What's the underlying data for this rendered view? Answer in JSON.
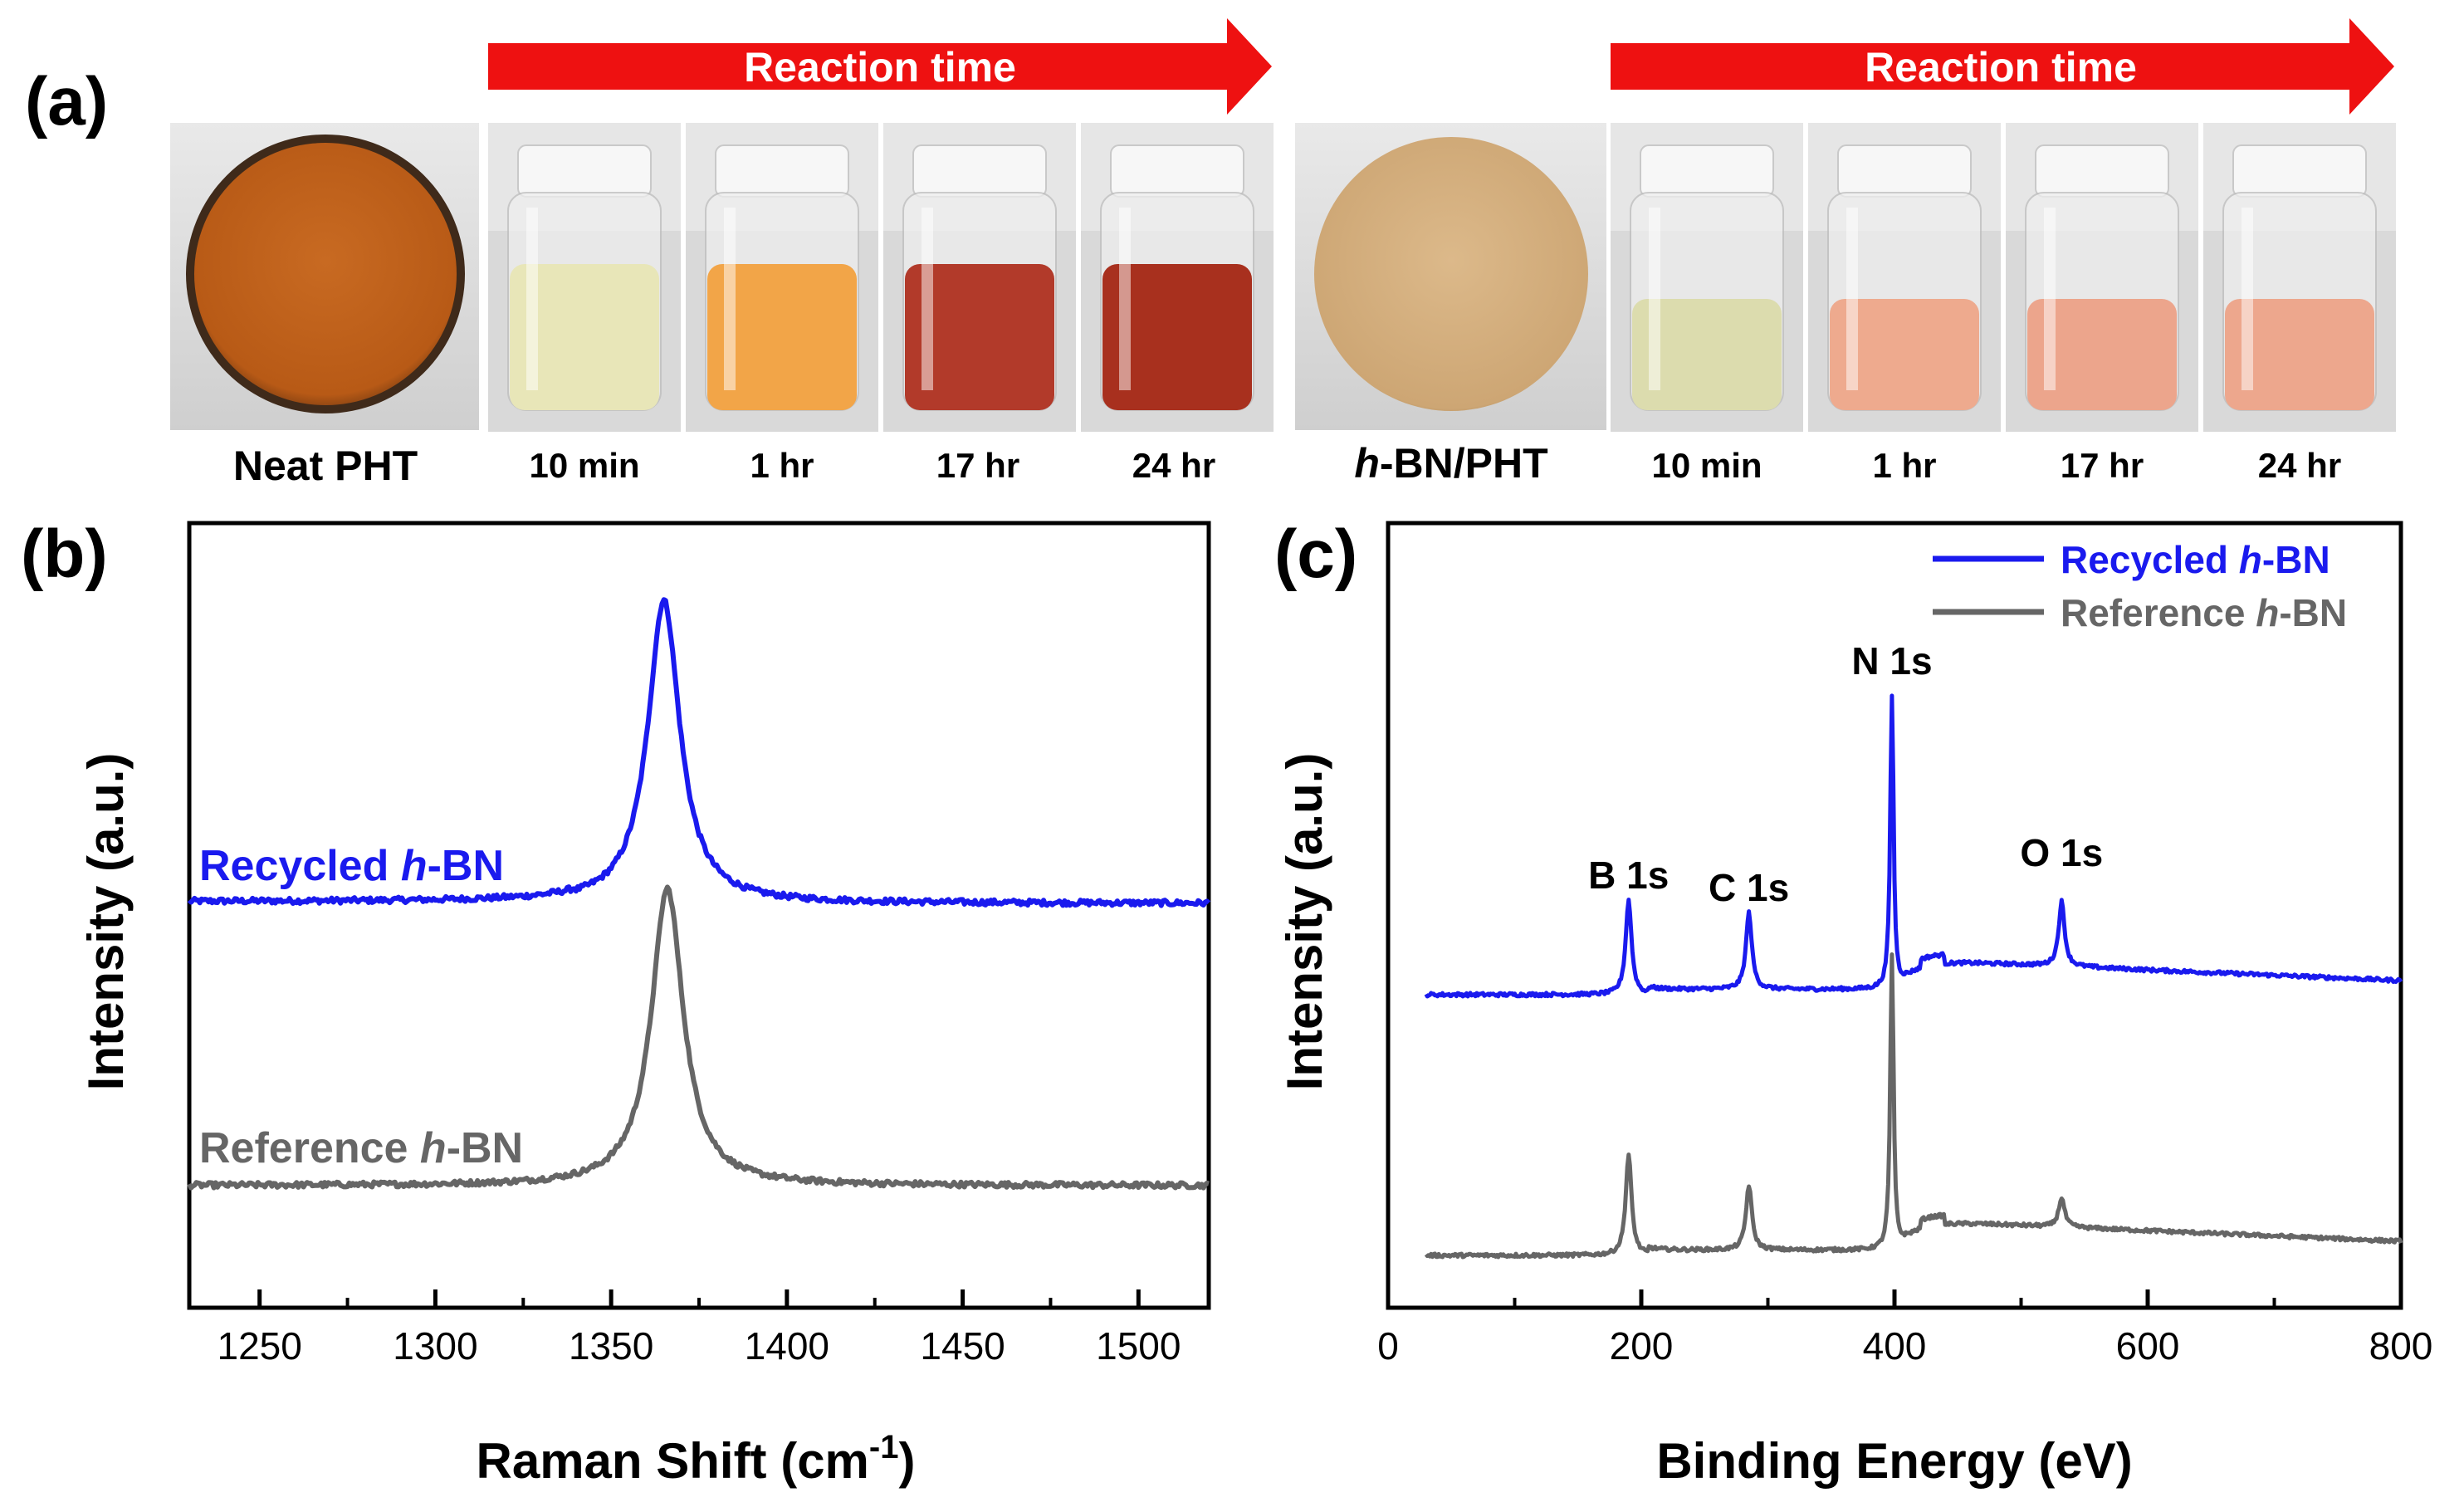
{
  "colors": {
    "blue": "#1a1aee",
    "gray": "#666666",
    "arrow": "#ee1111"
  },
  "panel_a": {
    "label": "(a)",
    "arrow_text_left": "Reaction time",
    "arrow_text_right": "Reaction time",
    "film1": "Neat PHT",
    "film2_italic": "h",
    "film2_rest": "-BN/PHT",
    "times": [
      "10 min",
      "1 hr",
      "17 hr",
      "24 hr"
    ],
    "left_vial_colors": [
      "#e8e6b8",
      "#f2a548",
      "#b23a2a",
      "#a8301e"
    ],
    "right_vial_colors": [
      "#dcdcae",
      "#eeaa8e",
      "#eca58c",
      "#eda78d"
    ]
  },
  "chart_data": [
    {
      "panel": "(b)",
      "type": "line",
      "xlabel": "Raman Shift (cm",
      "xlabel_sup": "-1",
      "xlabel_end": ")",
      "ylabel": "Intensity (a.u.)",
      "xlim": [
        1230,
        1520
      ],
      "xticks": [
        1250,
        1300,
        1350,
        1400,
        1450,
        1500
      ],
      "series": [
        {
          "name_pre": "Recycled ",
          "name_it": "h",
          "name_post": "-BN",
          "color": "#1a1aee",
          "peak_x": 1365,
          "peak_height": 1.0,
          "baseline": 0.0,
          "width": 5.5
        },
        {
          "name_pre": "Reference ",
          "name_it": "h",
          "name_post": "-BN",
          "color": "#666666",
          "peak_x": 1366,
          "peak_height": 1.0,
          "baseline": 0.0,
          "width": 5.5
        }
      ]
    },
    {
      "panel": "(c)",
      "type": "line",
      "xlabel": "Binding Energy (eV)",
      "ylabel": "Intensity (a.u.)",
      "xlim": [
        0,
        800
      ],
      "xticks": [
        0,
        200,
        400,
        600,
        800
      ],
      "annotations": [
        {
          "text": "B 1s",
          "x": 190
        },
        {
          "text": "C 1s",
          "x": 285
        },
        {
          "text": "N 1s",
          "x": 398
        },
        {
          "text": "O 1s",
          "x": 532
        }
      ],
      "series": [
        {
          "name_pre": "Recycled ",
          "name_it": "h",
          "name_post": "-BN",
          "color": "#1a1aee",
          "peaks": [
            {
              "x": 190,
              "h": 0.32
            },
            {
              "x": 285,
              "h": 0.26
            },
            {
              "x": 398,
              "h": 1.0
            },
            {
              "x": 532,
              "h": 0.22
            }
          ]
        },
        {
          "name_pre": "Reference ",
          "name_it": "h",
          "name_post": "-BN",
          "color": "#666666",
          "peaks": [
            {
              "x": 190,
              "h": 0.34
            },
            {
              "x": 285,
              "h": 0.22
            },
            {
              "x": 398,
              "h": 1.0
            },
            {
              "x": 532,
              "h": 0.1
            }
          ]
        }
      ]
    }
  ]
}
